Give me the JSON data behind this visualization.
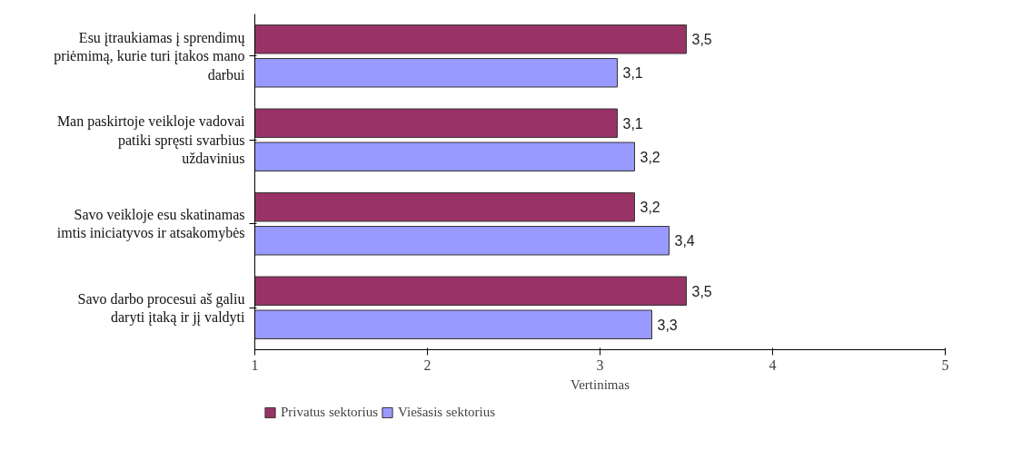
{
  "chart_data": {
    "type": "bar",
    "orientation": "horizontal",
    "xlabel": "Vertinimas",
    "categories": [
      "Esu įtraukiamas į sprendimų priėmimą, kurie turi įtakos mano darbui",
      "Man paskirtoje veikloje vadovai patiki spręsti svarbius uždavinius",
      "Savo veikloje esu skatinamas imtis iniciatyvos ir atsakomybės",
      "Savo darbo procesui aš galiu daryti įtaką ir jį valdyti"
    ],
    "series": [
      {
        "name": "Privatus sektorius",
        "color": "#993366",
        "values": [
          3.5,
          3.1,
          3.2,
          3.5
        ],
        "value_labels": [
          "3,5",
          "3,1",
          "3,2",
          "3,5"
        ]
      },
      {
        "name": "Viešasis sektorius",
        "color": "#9999ff",
        "values": [
          3.1,
          3.2,
          3.4,
          3.3
        ],
        "value_labels": [
          "3,1",
          "3,2",
          "3,4",
          "3,3"
        ]
      }
    ],
    "xlim": [
      1,
      5
    ],
    "xticks": [
      1,
      2,
      3,
      4,
      5
    ],
    "grid": false,
    "legend": "bottom left"
  }
}
